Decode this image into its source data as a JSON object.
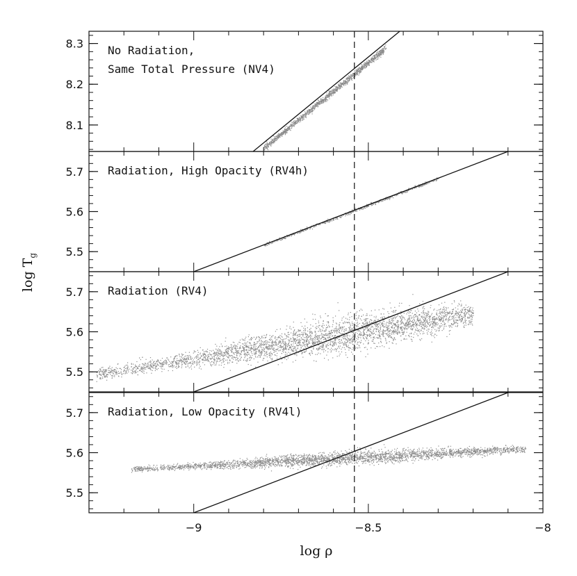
{
  "chart_data": {
    "type": "scatter",
    "xlabel": "log ρ",
    "ylabel_main": "log T",
    "ylabel_sub": "g",
    "xlim": [
      -9.3,
      -8.0
    ],
    "x_ticks": [
      {
        "value": -9.0,
        "label": "−9"
      },
      {
        "value": -8.5,
        "label": "−8.5"
      },
      {
        "value": -8.0,
        "label": "−8"
      }
    ],
    "x_minor_step": 0.1,
    "reference_x": -8.54,
    "panels": [
      {
        "label_lines": [
          "No Radiation,",
          "Same Total Pressure (NV4)"
        ],
        "ylim": [
          8.035,
          8.33
        ],
        "y_ticks": [
          {
            "value": 8.1,
            "label": "8.1"
          },
          {
            "value": 8.2,
            "label": "8.2"
          },
          {
            "value": 8.3,
            "label": "8.3"
          }
        ],
        "y_minor_step": 0.02,
        "line": {
          "x": [
            -8.83,
            -8.41
          ],
          "y": [
            8.035,
            8.33
          ]
        },
        "cloud": {
          "x_start": -8.8,
          "x_end": -8.45,
          "slope": 0.7024,
          "y_at_ref": 8.226,
          "width": 0.5,
          "spread": 0.004,
          "count": 1400
        }
      },
      {
        "label_lines": [
          "Radiation, High Opacity (RV4h)"
        ],
        "ylim": [
          5.45,
          5.75
        ],
        "y_ticks": [
          {
            "value": 5.5,
            "label": "5.5"
          },
          {
            "value": 5.6,
            "label": "5.6"
          },
          {
            "value": 5.7,
            "label": "5.7"
          }
        ],
        "y_minor_step": 0.02,
        "line": {
          "x": [
            -9.0,
            -8.1
          ],
          "y": [
            5.45,
            5.75
          ]
        },
        "cloud": {
          "x_start": -8.8,
          "x_end": -8.3,
          "slope": 0.3333,
          "y_at_ref": 5.603,
          "width": 0.5,
          "spread": 0.002,
          "count": 600
        }
      },
      {
        "label_lines": [
          "Radiation (RV4)"
        ],
        "ylim": [
          5.45,
          5.75
        ],
        "y_ticks": [
          {
            "value": 5.5,
            "label": "5.5"
          },
          {
            "value": 5.6,
            "label": "5.6"
          },
          {
            "value": 5.7,
            "label": "5.7"
          }
        ],
        "y_minor_step": 0.02,
        "line": {
          "x": [
            -9.0,
            -8.1
          ],
          "y": [
            5.45,
            5.75
          ]
        },
        "cloud": {
          "x_start": -9.28,
          "x_end": -8.2,
          "slope": 0.14,
          "y_at_ref": 5.598,
          "width": 0.35,
          "spread": 0.022,
          "count": 5500
        }
      },
      {
        "label_lines": [
          "Radiation, Low Opacity (RV4l)"
        ],
        "ylim": [
          5.45,
          5.75
        ],
        "y_ticks": [
          {
            "value": 5.5,
            "label": "5.5"
          },
          {
            "value": 5.6,
            "label": "5.6"
          },
          {
            "value": 5.7,
            "label": "5.7"
          }
        ],
        "y_minor_step": 0.02,
        "line": {
          "x": [
            -9.0,
            -8.1
          ],
          "y": [
            5.45,
            5.75
          ]
        },
        "cloud": {
          "x_start": -9.18,
          "x_end": -8.05,
          "slope": 0.045,
          "y_at_ref": 5.588,
          "width": 0.4,
          "spread": 0.008,
          "count": 4200
        }
      }
    ]
  }
}
